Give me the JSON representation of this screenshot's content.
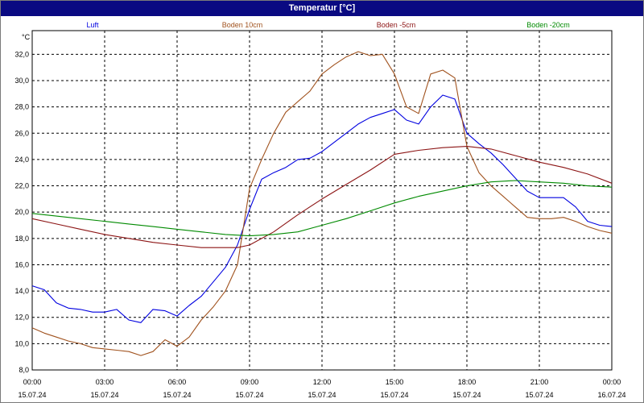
{
  "window": {
    "title": "Temperatur [°C]"
  },
  "chart_data": {
    "type": "line",
    "title": "Temperatur [°C]",
    "ylabel": "°C",
    "ylim": [
      8.0,
      33.8
    ],
    "yticks": [
      "8,0",
      "10,0",
      "12,0",
      "14,0",
      "16,0",
      "18,0",
      "20,0",
      "22,0",
      "24,0",
      "26,0",
      "28,0",
      "30,0",
      "32,0"
    ],
    "xlim_hours": [
      0,
      24
    ],
    "xticks": [
      {
        "time": "00:00",
        "date": "15.07.24"
      },
      {
        "time": "03:00",
        "date": "15.07.24"
      },
      {
        "time": "06:00",
        "date": "15.07.24"
      },
      {
        "time": "09:00",
        "date": "15.07.24"
      },
      {
        "time": "12:00",
        "date": "15.07.24"
      },
      {
        "time": "15:00",
        "date": "15.07.24"
      },
      {
        "time": "18:00",
        "date": "15.07.24"
      },
      {
        "time": "21:00",
        "date": "15.07.24"
      },
      {
        "time": "00:00",
        "date": "16.07.24"
      }
    ],
    "grid": true,
    "legend_position": "top",
    "series": [
      {
        "name": "Luft",
        "color": "#0000e0",
        "points": [
          [
            0,
            14.4
          ],
          [
            0.5,
            14.1
          ],
          [
            1,
            13.1
          ],
          [
            1.5,
            12.7
          ],
          [
            2,
            12.6
          ],
          [
            2.5,
            12.4
          ],
          [
            3,
            12.4
          ],
          [
            3.5,
            12.6
          ],
          [
            4,
            11.8
          ],
          [
            4.5,
            11.6
          ],
          [
            5,
            12.6
          ],
          [
            5.5,
            12.5
          ],
          [
            6,
            12.1
          ],
          [
            6.5,
            12.9
          ],
          [
            7,
            13.6
          ],
          [
            7.5,
            14.7
          ],
          [
            8,
            15.8
          ],
          [
            8.5,
            17.5
          ],
          [
            9,
            20.2
          ],
          [
            9.5,
            22.5
          ],
          [
            10,
            23.0
          ],
          [
            10.5,
            23.4
          ],
          [
            11,
            24.0
          ],
          [
            11.5,
            24.1
          ],
          [
            12,
            24.6
          ],
          [
            12.5,
            25.3
          ],
          [
            13,
            26.0
          ],
          [
            13.5,
            26.7
          ],
          [
            14,
            27.2
          ],
          [
            14.5,
            27.5
          ],
          [
            15,
            27.8
          ],
          [
            15.5,
            27.0
          ],
          [
            16,
            26.7
          ],
          [
            16.5,
            28.0
          ],
          [
            17,
            28.9
          ],
          [
            17.5,
            28.6
          ],
          [
            18,
            26.0
          ],
          [
            18.5,
            25.2
          ],
          [
            19,
            24.5
          ],
          [
            19.5,
            23.6
          ],
          [
            20,
            22.6
          ],
          [
            20.5,
            21.6
          ],
          [
            21,
            21.1
          ],
          [
            21.5,
            21.1
          ],
          [
            22,
            21.1
          ],
          [
            22.5,
            20.4
          ],
          [
            23,
            19.3
          ],
          [
            23.5,
            19.0
          ],
          [
            24,
            18.9
          ]
        ]
      },
      {
        "name": "Boden 10cm",
        "color": "#a0521e",
        "points": [
          [
            0,
            11.2
          ],
          [
            0.5,
            10.8
          ],
          [
            1,
            10.5
          ],
          [
            1.5,
            10.2
          ],
          [
            2,
            10.0
          ],
          [
            2.5,
            9.7
          ],
          [
            3,
            9.6
          ],
          [
            3.5,
            9.5
          ],
          [
            4,
            9.4
          ],
          [
            4.5,
            9.1
          ],
          [
            5,
            9.4
          ],
          [
            5.5,
            10.3
          ],
          [
            6,
            9.8
          ],
          [
            6.5,
            10.5
          ],
          [
            7,
            11.8
          ],
          [
            7.5,
            12.8
          ],
          [
            8,
            14.0
          ],
          [
            8.5,
            16.0
          ],
          [
            9,
            21.8
          ],
          [
            9.5,
            24.0
          ],
          [
            10,
            26.0
          ],
          [
            10.5,
            27.6
          ],
          [
            11,
            28.4
          ],
          [
            11.5,
            29.2
          ],
          [
            12,
            30.5
          ],
          [
            12.5,
            31.2
          ],
          [
            13,
            31.8
          ],
          [
            13.5,
            32.2
          ],
          [
            14,
            31.9
          ],
          [
            14.5,
            32.0
          ],
          [
            15,
            30.5
          ],
          [
            15.5,
            28.0
          ],
          [
            16,
            27.5
          ],
          [
            16.5,
            30.5
          ],
          [
            17,
            30.8
          ],
          [
            17.5,
            30.2
          ],
          [
            18,
            25.0
          ],
          [
            18.5,
            23.0
          ],
          [
            19,
            22.0
          ],
          [
            19.5,
            21.2
          ],
          [
            20,
            20.4
          ],
          [
            20.5,
            19.6
          ],
          [
            21,
            19.5
          ],
          [
            21.5,
            19.5
          ],
          [
            22,
            19.6
          ],
          [
            22.5,
            19.3
          ],
          [
            23,
            18.9
          ],
          [
            23.5,
            18.6
          ],
          [
            24,
            18.4
          ]
        ]
      },
      {
        "name": "Boden -5cm",
        "color": "#8c1414",
        "points": [
          [
            0,
            19.5
          ],
          [
            1,
            19.1
          ],
          [
            2,
            18.7
          ],
          [
            3,
            18.3
          ],
          [
            4,
            18.0
          ],
          [
            5,
            17.7
          ],
          [
            6,
            17.5
          ],
          [
            7,
            17.3
          ],
          [
            8,
            17.3
          ],
          [
            8.5,
            17.3
          ],
          [
            9,
            17.5
          ],
          [
            10,
            18.5
          ],
          [
            11,
            19.8
          ],
          [
            12,
            21.0
          ],
          [
            13,
            22.1
          ],
          [
            14,
            23.2
          ],
          [
            15,
            24.4
          ],
          [
            16,
            24.7
          ],
          [
            17,
            24.9
          ],
          [
            18,
            25.0
          ],
          [
            19,
            24.8
          ],
          [
            20,
            24.3
          ],
          [
            21,
            23.8
          ],
          [
            22,
            23.4
          ],
          [
            23,
            22.9
          ],
          [
            24,
            22.2
          ]
        ]
      },
      {
        "name": "Boden -20cm",
        "color": "#008a00",
        "points": [
          [
            0,
            19.9
          ],
          [
            1,
            19.7
          ],
          [
            2,
            19.5
          ],
          [
            3,
            19.3
          ],
          [
            4,
            19.1
          ],
          [
            5,
            18.9
          ],
          [
            6,
            18.7
          ],
          [
            7,
            18.5
          ],
          [
            8,
            18.3
          ],
          [
            9,
            18.2
          ],
          [
            10,
            18.3
          ],
          [
            11,
            18.5
          ],
          [
            12,
            19.0
          ],
          [
            13,
            19.5
          ],
          [
            14,
            20.1
          ],
          [
            15,
            20.7
          ],
          [
            16,
            21.2
          ],
          [
            17,
            21.6
          ],
          [
            18,
            22.0
          ],
          [
            19,
            22.3
          ],
          [
            20,
            22.4
          ],
          [
            21,
            22.3
          ],
          [
            22,
            22.2
          ],
          [
            23,
            22.0
          ],
          [
            24,
            21.9
          ]
        ]
      }
    ]
  }
}
